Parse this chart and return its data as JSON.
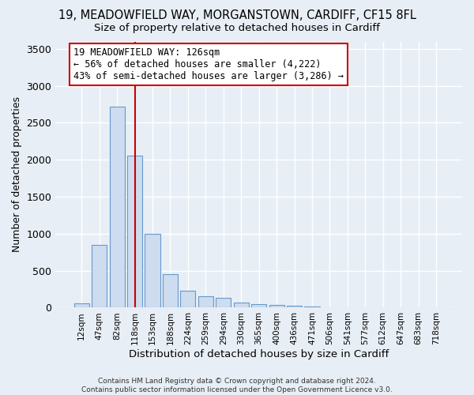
{
  "title1": "19, MEADOWFIELD WAY, MORGANSTOWN, CARDIFF, CF15 8FL",
  "title2": "Size of property relative to detached houses in Cardiff",
  "xlabel": "Distribution of detached houses by size in Cardiff",
  "ylabel": "Number of detached properties",
  "footer1": "Contains HM Land Registry data © Crown copyright and database right 2024.",
  "footer2": "Contains public sector information licensed under the Open Government Licence v3.0.",
  "annotation_line1": "19 MEADOWFIELD WAY: 126sqm",
  "annotation_line2": "← 56% of detached houses are smaller (4,222)",
  "annotation_line3": "43% of semi-detached houses are larger (3,286) →",
  "bar_labels": [
    "12sqm",
    "47sqm",
    "82sqm",
    "118sqm",
    "153sqm",
    "188sqm",
    "224sqm",
    "259sqm",
    "294sqm",
    "330sqm",
    "365sqm",
    "400sqm",
    "436sqm",
    "471sqm",
    "506sqm",
    "541sqm",
    "577sqm",
    "612sqm",
    "647sqm",
    "683sqm",
    "718sqm"
  ],
  "bar_values": [
    60,
    850,
    2720,
    2060,
    1000,
    450,
    230,
    150,
    130,
    65,
    50,
    35,
    25,
    15,
    5,
    0,
    0,
    0,
    0,
    0,
    0
  ],
  "bar_color": "#cddcee",
  "bar_edge_color": "#6699cc",
  "vline_x_index": 3,
  "vline_color": "#cc0000",
  "ylim": [
    0,
    3600
  ],
  "yticks": [
    0,
    500,
    1000,
    1500,
    2000,
    2500,
    3000,
    3500
  ],
  "bg_color": "#e8eef5",
  "grid_color": "#ffffff",
  "title1_fontsize": 10.5,
  "title2_fontsize": 9.5,
  "annotation_box_color": "#ffffff",
  "annotation_box_edge": "#cc0000",
  "annotation_fontsize": 8.5
}
